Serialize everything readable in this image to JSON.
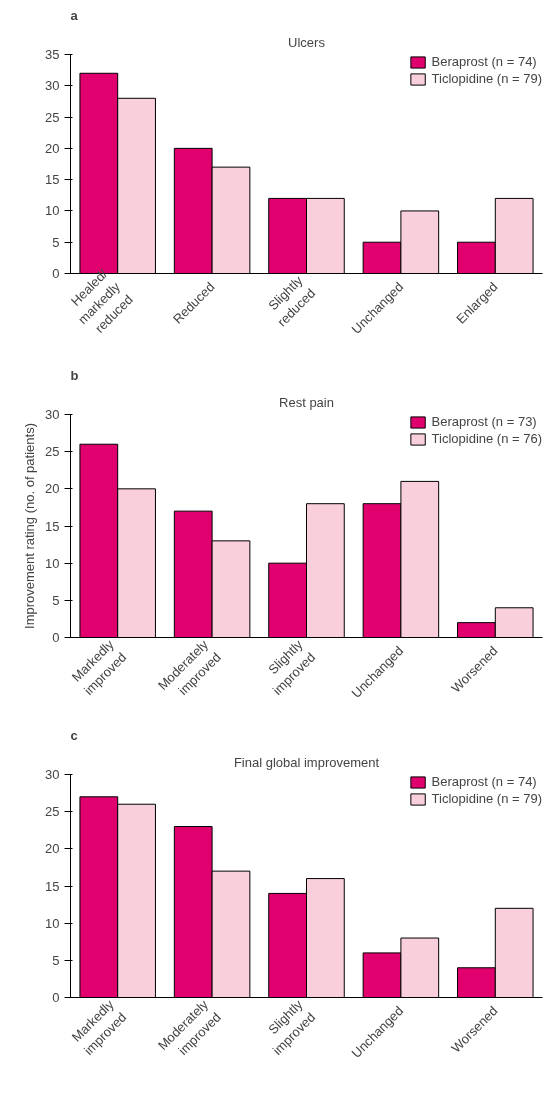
{
  "chart_data": [
    {
      "type": "bar",
      "title": "Ulcers",
      "annotations": [
        "a"
      ],
      "categories": [
        "Healed/\nmarkedly\nreduced",
        "Reduced",
        "Slightly\nreduced",
        "Unchanged",
        "Enlarged"
      ],
      "series": [
        {
          "name": "Beraprost (n = 74)",
          "color": "#e0006e",
          "values": [
            32,
            20,
            12,
            5,
            5
          ]
        },
        {
          "name": "Ticlopidine (n = 79)",
          "color": "#f9cfdc",
          "values": [
            28,
            17,
            12,
            10,
            12
          ]
        }
      ],
      "ylim": [
        0,
        35
      ],
      "yticks": [
        0,
        5,
        10,
        15,
        20,
        25,
        30,
        35
      ],
      "legend": "top right",
      "grid": false
    },
    {
      "type": "bar",
      "title": "Rest pain",
      "annotations": [
        "b"
      ],
      "ylabel": "Improvement rating (no. of patients)",
      "categories": [
        "Markedly\nimproved",
        "Moderately\nimproved",
        "Slightly\nimproved",
        "Unchanged",
        "Worsened"
      ],
      "series": [
        {
          "name": "Beraprost (n = 73)",
          "color": "#e0006e",
          "values": [
            26,
            17,
            10,
            18,
            2
          ]
        },
        {
          "name": "Ticlopidine (n = 76)",
          "color": "#f9cfdc",
          "values": [
            20,
            13,
            18,
            21,
            4
          ]
        }
      ],
      "ylim": [
        0,
        30
      ],
      "yticks": [
        0,
        5,
        10,
        15,
        20,
        25,
        30
      ],
      "legend": "top right",
      "grid": false
    },
    {
      "type": "bar",
      "title": "Final global improvement",
      "annotations": [
        "c"
      ],
      "categories": [
        "Markedly\nimproved",
        "Moderately\nimproved",
        "Slightly\nimproved",
        "Unchanged",
        "Worsened"
      ],
      "series": [
        {
          "name": "Beraprost (n = 74)",
          "color": "#e0006e",
          "values": [
            27,
            23,
            14,
            6,
            4
          ]
        },
        {
          "name": "Ticlopidine (n = 79)",
          "color": "#f9cfdc",
          "values": [
            26,
            17,
            16,
            8,
            12
          ]
        }
      ],
      "ylim": [
        0,
        30
      ],
      "yticks": [
        0,
        5,
        10,
        15,
        20,
        25,
        30
      ],
      "legend": "top right",
      "grid": false
    }
  ]
}
